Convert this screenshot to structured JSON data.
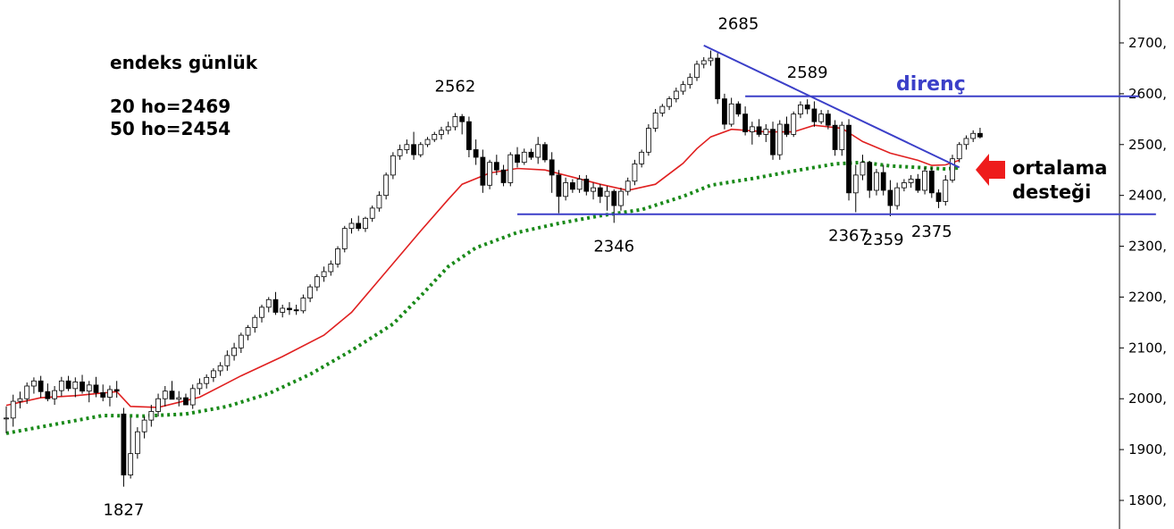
{
  "chart_data": {
    "type": "candlestick",
    "title_lines": [
      "endeks günlük",
      "20 ho=2469",
      "50 ho=2454"
    ],
    "y_axis": {
      "ticks": [
        "1800,",
        "1900,",
        "2000,",
        "2100,",
        "2200,",
        "2300,",
        "2400,",
        "2500,",
        "2600,",
        "2700,"
      ],
      "ylim": [
        1745,
        2795
      ]
    },
    "annotations": {
      "peaks": [
        {
          "text": "1827",
          "i": 17,
          "value": 1827,
          "pos": "below"
        },
        {
          "text": "2562",
          "i": 65,
          "value": 2562,
          "pos": "above"
        },
        {
          "text": "2346",
          "i": 88,
          "value": 2346,
          "pos": "below"
        },
        {
          "text": "2685",
          "i": 106,
          "value": 2685,
          "pos": "above"
        },
        {
          "text": "2589",
          "i": 116,
          "value": 2589,
          "pos": "above"
        },
        {
          "text": "2367",
          "i": 122,
          "value": 2367,
          "pos": "below"
        },
        {
          "text": "2359",
          "i": 127,
          "value": 2359,
          "pos": "below"
        },
        {
          "text": "2375",
          "i": 134,
          "value": 2375,
          "pos": "below"
        }
      ],
      "resistance": {
        "label": "direnç",
        "value": 2595,
        "i_start": 107,
        "i_end": 164
      },
      "support": {
        "value": 2363,
        "i_start": 74,
        "i_end": 160
      },
      "trendline": {
        "from_i": 101,
        "from_v": 2695,
        "to_i": 138,
        "to_v": 2455
      },
      "arrow_label": [
        "ortalama",
        "desteği"
      ]
    },
    "colors": {
      "up_candle": "#ffffff",
      "down_candle": "#000000",
      "ma20": "#e02020",
      "ma50": "#1a8a1a",
      "lines": "#3b3fc8",
      "arrow": "#ee1c1c"
    },
    "candles": [
      [
        1961,
        1985,
        1932,
        1962
      ],
      [
        1962,
        2008,
        1945,
        1995
      ],
      [
        1995,
        2014,
        1981,
        2000
      ],
      [
        2000,
        2032,
        1990,
        2025
      ],
      [
        2025,
        2042,
        2010,
        2035
      ],
      [
        2035,
        2045,
        2002,
        2014
      ],
      [
        2014,
        2030,
        1995,
        2000
      ],
      [
        2000,
        2025,
        1988,
        2016
      ],
      [
        2016,
        2043,
        2005,
        2035
      ],
      [
        2035,
        2045,
        2015,
        2020
      ],
      [
        2020,
        2042,
        2003,
        2033
      ],
      [
        2033,
        2047,
        2010,
        2015
      ],
      [
        2015,
        2035,
        1993,
        2027
      ],
      [
        2027,
        2043,
        2003,
        2012
      ],
      [
        2012,
        2028,
        1995,
        2003
      ],
      [
        2003,
        2026,
        1985,
        2018
      ],
      [
        2018,
        2035,
        2002,
        2015
      ],
      [
        1970,
        1982,
        1827,
        1850
      ],
      [
        1850,
        1963,
        1843,
        1892
      ],
      [
        1892,
        1944,
        1882,
        1935
      ],
      [
        1935,
        1965,
        1922,
        1958
      ],
      [
        1958,
        1988,
        1945,
        1975
      ],
      [
        1975,
        2010,
        1965,
        2000
      ],
      [
        2000,
        2025,
        1985,
        2015
      ],
      [
        2015,
        2035,
        2000,
        1999
      ],
      [
        1999,
        2015,
        1985,
        2002
      ],
      [
        2002,
        2010,
        1990,
        1988
      ],
      [
        1988,
        2028,
        1980,
        2020
      ],
      [
        2020,
        2040,
        2008,
        2030
      ],
      [
        2030,
        2048,
        2020,
        2042
      ],
      [
        2042,
        2060,
        2033,
        2055
      ],
      [
        2055,
        2072,
        2045,
        2065
      ],
      [
        2065,
        2095,
        2055,
        2085
      ],
      [
        2085,
        2110,
        2075,
        2100
      ],
      [
        2100,
        2130,
        2090,
        2125
      ],
      [
        2125,
        2145,
        2115,
        2140
      ],
      [
        2140,
        2165,
        2130,
        2160
      ],
      [
        2160,
        2185,
        2150,
        2180
      ],
      [
        2180,
        2200,
        2170,
        2195
      ],
      [
        2195,
        2210,
        2165,
        2170
      ],
      [
        2170,
        2185,
        2160,
        2178
      ],
      [
        2178,
        2190,
        2165,
        2175
      ],
      [
        2175,
        2185,
        2165,
        2173
      ],
      [
        2173,
        2205,
        2168,
        2198
      ],
      [
        2198,
        2225,
        2190,
        2220
      ],
      [
        2220,
        2245,
        2212,
        2240
      ],
      [
        2240,
        2260,
        2230,
        2250
      ],
      [
        2250,
        2272,
        2242,
        2265
      ],
      [
        2265,
        2300,
        2258,
        2295
      ],
      [
        2295,
        2340,
        2288,
        2335
      ],
      [
        2335,
        2355,
        2325,
        2345
      ],
      [
        2345,
        2360,
        2330,
        2335
      ],
      [
        2335,
        2358,
        2328,
        2355
      ],
      [
        2355,
        2380,
        2348,
        2375
      ],
      [
        2375,
        2408,
        2368,
        2400
      ],
      [
        2400,
        2445,
        2392,
        2440
      ],
      [
        2440,
        2485,
        2432,
        2478
      ],
      [
        2478,
        2500,
        2470,
        2490
      ],
      [
        2490,
        2510,
        2482,
        2500
      ],
      [
        2500,
        2525,
        2470,
        2480
      ],
      [
        2480,
        2505,
        2475,
        2500
      ],
      [
        2500,
        2515,
        2495,
        2510
      ],
      [
        2510,
        2525,
        2505,
        2520
      ],
      [
        2520,
        2535,
        2510,
        2528
      ],
      [
        2528,
        2545,
        2520,
        2535
      ],
      [
        2535,
        2562,
        2528,
        2555
      ],
      [
        2555,
        2560,
        2520,
        2545
      ],
      [
        2545,
        2555,
        2475,
        2490
      ],
      [
        2490,
        2510,
        2460,
        2475
      ],
      [
        2475,
        2490,
        2405,
        2420
      ],
      [
        2420,
        2470,
        2412,
        2465
      ],
      [
        2465,
        2480,
        2440,
        2450
      ],
      [
        2450,
        2460,
        2418,
        2425
      ],
      [
        2425,
        2485,
        2418,
        2480
      ],
      [
        2480,
        2495,
        2455,
        2465
      ],
      [
        2465,
        2492,
        2460,
        2485
      ],
      [
        2485,
        2492,
        2470,
        2475
      ],
      [
        2475,
        2515,
        2462,
        2500
      ],
      [
        2500,
        2505,
        2465,
        2470
      ],
      [
        2470,
        2485,
        2405,
        2440
      ],
      [
        2440,
        2450,
        2365,
        2398
      ],
      [
        2398,
        2435,
        2390,
        2425
      ],
      [
        2425,
        2432,
        2405,
        2412
      ],
      [
        2412,
        2440,
        2405,
        2432
      ],
      [
        2432,
        2440,
        2400,
        2408
      ],
      [
        2408,
        2425,
        2392,
        2415
      ],
      [
        2415,
        2422,
        2385,
        2398
      ],
      [
        2398,
        2418,
        2370,
        2408
      ],
      [
        2408,
        2412,
        2346,
        2380
      ],
      [
        2380,
        2415,
        2370,
        2408
      ],
      [
        2408,
        2435,
        2400,
        2428
      ],
      [
        2428,
        2470,
        2420,
        2462
      ],
      [
        2462,
        2490,
        2455,
        2485
      ],
      [
        2485,
        2540,
        2478,
        2532
      ],
      [
        2532,
        2570,
        2525,
        2562
      ],
      [
        2562,
        2580,
        2555,
        2575
      ],
      [
        2575,
        2595,
        2568,
        2590
      ],
      [
        2590,
        2612,
        2583,
        2605
      ],
      [
        2605,
        2625,
        2598,
        2618
      ],
      [
        2618,
        2640,
        2610,
        2632
      ],
      [
        2632,
        2665,
        2625,
        2658
      ],
      [
        2658,
        2672,
        2650,
        2665
      ],
      [
        2665,
        2685,
        2655,
        2670
      ],
      [
        2670,
        2680,
        2580,
        2590
      ],
      [
        2590,
        2600,
        2530,
        2540
      ],
      [
        2540,
        2592,
        2535,
        2580
      ],
      [
        2580,
        2585,
        2555,
        2560
      ],
      [
        2560,
        2575,
        2518,
        2525
      ],
      [
        2525,
        2545,
        2500,
        2535
      ],
      [
        2535,
        2550,
        2515,
        2520
      ],
      [
        2520,
        2540,
        2505,
        2530
      ],
      [
        2530,
        2545,
        2470,
        2480
      ],
      [
        2480,
        2548,
        2470,
        2540
      ],
      [
        2540,
        2555,
        2515,
        2520
      ],
      [
        2520,
        2565,
        2515,
        2560
      ],
      [
        2560,
        2585,
        2552,
        2578
      ],
      [
        2578,
        2589,
        2560,
        2570
      ],
      [
        2570,
        2585,
        2535,
        2545
      ],
      [
        2545,
        2568,
        2540,
        2560
      ],
      [
        2560,
        2568,
        2530,
        2538
      ],
      [
        2538,
        2548,
        2478,
        2490
      ],
      [
        2490,
        2545,
        2478,
        2538
      ],
      [
        2538,
        2550,
        2390,
        2405
      ],
      [
        2405,
        2460,
        2367,
        2440
      ],
      [
        2440,
        2480,
        2430,
        2465
      ],
      [
        2465,
        2468,
        2395,
        2410
      ],
      [
        2410,
        2452,
        2400,
        2445
      ],
      [
        2445,
        2460,
        2400,
        2410
      ],
      [
        2410,
        2430,
        2359,
        2380
      ],
      [
        2380,
        2425,
        2372,
        2415
      ],
      [
        2415,
        2432,
        2408,
        2425
      ],
      [
        2425,
        2440,
        2415,
        2432
      ],
      [
        2432,
        2442,
        2405,
        2410
      ],
      [
        2410,
        2455,
        2402,
        2448
      ],
      [
        2448,
        2455,
        2395,
        2405
      ],
      [
        2405,
        2412,
        2375,
        2388
      ],
      [
        2388,
        2440,
        2380,
        2430
      ],
      [
        2430,
        2480,
        2425,
        2472
      ],
      [
        2472,
        2505,
        2465,
        2500
      ],
      [
        2500,
        2518,
        2490,
        2512
      ],
      [
        2512,
        2528,
        2505,
        2522
      ],
      [
        2522,
        2533,
        2512,
        2515
      ]
    ],
    "ma20": [
      [
        0,
        1987
      ],
      [
        5,
        2002
      ],
      [
        10,
        2006
      ],
      [
        16,
        2014
      ],
      [
        18,
        1985
      ],
      [
        22,
        1983
      ],
      [
        28,
        2003
      ],
      [
        34,
        2045
      ],
      [
        40,
        2083
      ],
      [
        46,
        2125
      ],
      [
        50,
        2170
      ],
      [
        55,
        2250
      ],
      [
        60,
        2330
      ],
      [
        64,
        2392
      ],
      [
        66,
        2422
      ],
      [
        70,
        2444
      ],
      [
        74,
        2453
      ],
      [
        78,
        2450
      ],
      [
        82,
        2436
      ],
      [
        86,
        2422
      ],
      [
        90,
        2410
      ],
      [
        94,
        2422
      ],
      [
        98,
        2463
      ],
      [
        100,
        2492
      ],
      [
        102,
        2515
      ],
      [
        105,
        2530
      ],
      [
        110,
        2525
      ],
      [
        114,
        2525
      ],
      [
        117,
        2538
      ],
      [
        121,
        2532
      ],
      [
        124,
        2506
      ],
      [
        128,
        2483
      ],
      [
        132,
        2469
      ],
      [
        134,
        2459
      ],
      [
        136,
        2460
      ],
      [
        138,
        2469
      ]
    ],
    "ma50": [
      [
        0,
        1932
      ],
      [
        8,
        1952
      ],
      [
        14,
        1967
      ],
      [
        20,
        1966
      ],
      [
        26,
        1970
      ],
      [
        32,
        1985
      ],
      [
        38,
        2010
      ],
      [
        44,
        2048
      ],
      [
        50,
        2095
      ],
      [
        56,
        2147
      ],
      [
        60,
        2202
      ],
      [
        64,
        2260
      ],
      [
        68,
        2297
      ],
      [
        74,
        2327
      ],
      [
        80,
        2345
      ],
      [
        86,
        2360
      ],
      [
        92,
        2372
      ],
      [
        98,
        2398
      ],
      [
        102,
        2420
      ],
      [
        108,
        2433
      ],
      [
        114,
        2448
      ],
      [
        120,
        2462
      ],
      [
        124,
        2465
      ],
      [
        128,
        2458
      ],
      [
        132,
        2455
      ],
      [
        136,
        2452
      ],
      [
        138,
        2454
      ]
    ]
  }
}
